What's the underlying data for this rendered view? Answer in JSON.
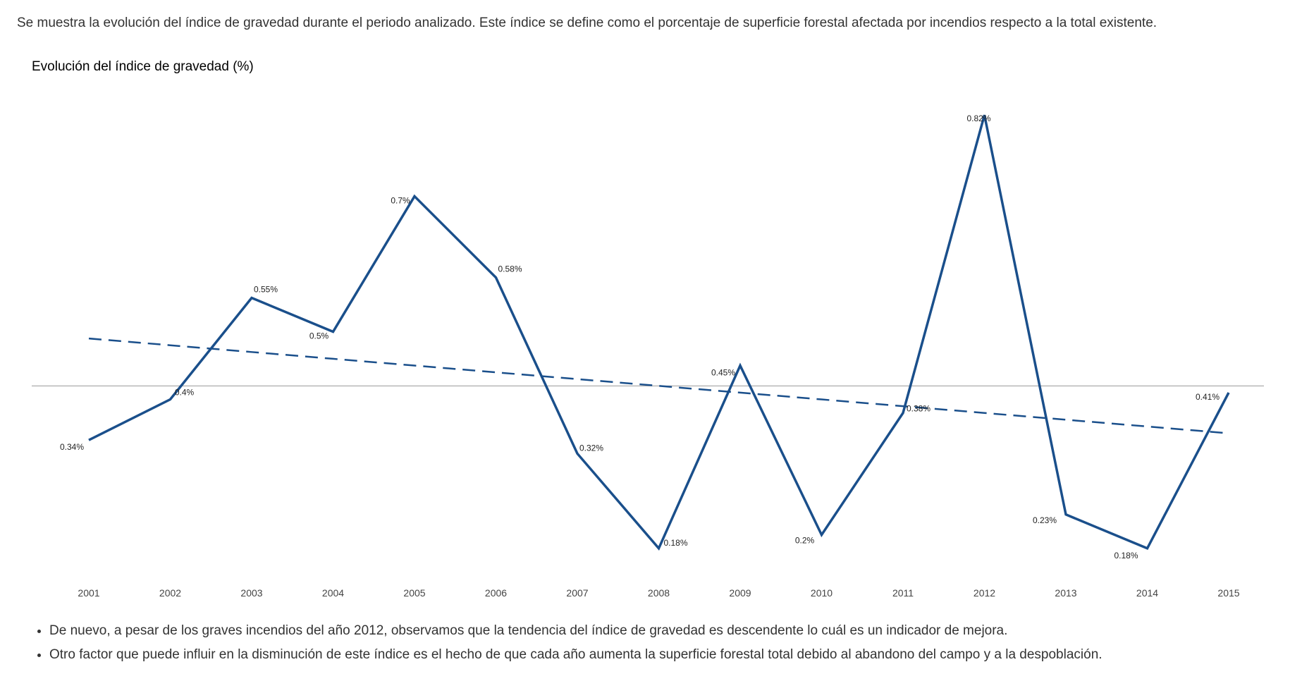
{
  "intro_text": "Se muestra la evolución del índice de gravedad durante el periodo analizado. Este índice se define como el porcentaje de superficie forestal afectada por incendios respecto a la total existente.",
  "chart_title": "Evolución del índice de gravedad (%)",
  "bullets": [
    "De nuevo, a pesar de los graves incendios del año 2012, observamos que la tendencia del índice de gravedad es descendente lo cuál es un indicador de mejora.",
    "Otro factor que puede influir en la disminución de este índice es el hecho de que cada año aumenta la superficie forestal total debido al abandono del campo y a la despoblación."
  ],
  "chart_data": {
    "type": "line",
    "title": "Evolución del índice de gravedad (%)",
    "xlabel": "",
    "ylabel": "",
    "categories": [
      "2001",
      "2002",
      "2003",
      "2004",
      "2005",
      "2006",
      "2007",
      "2008",
      "2009",
      "2010",
      "2011",
      "2012",
      "2013",
      "2014",
      "2015"
    ],
    "series": [
      {
        "values": [
          0.34,
          0.4,
          0.55,
          0.5,
          0.7,
          0.58,
          0.32,
          0.18,
          0.45,
          0.2,
          0.38,
          0.82,
          0.23,
          0.18,
          0.41
        ],
        "labels": [
          "0.34%",
          "0.4%",
          "0.55%",
          "0.5%",
          "0.7%",
          "0.58%",
          "0.32%",
          "0.18%",
          "0.45%",
          "0.2%",
          "0.38%",
          "0.82%",
          "0.23%",
          "0.18%",
          "0.41%"
        ],
        "color": "#1a4f8b",
        "style": "solid"
      },
      {
        "values": [
          0.49,
          0.48,
          0.47,
          0.46,
          0.45,
          0.44,
          0.43,
          0.42,
          0.41,
          0.4,
          0.39,
          0.38,
          0.37,
          0.36,
          0.35
        ],
        "color": "#1a4f8b",
        "style": "dashed"
      }
    ],
    "reference_line": 0.42,
    "ylim": [
      0.16,
      0.84
    ],
    "grid": false,
    "legend": "none"
  }
}
